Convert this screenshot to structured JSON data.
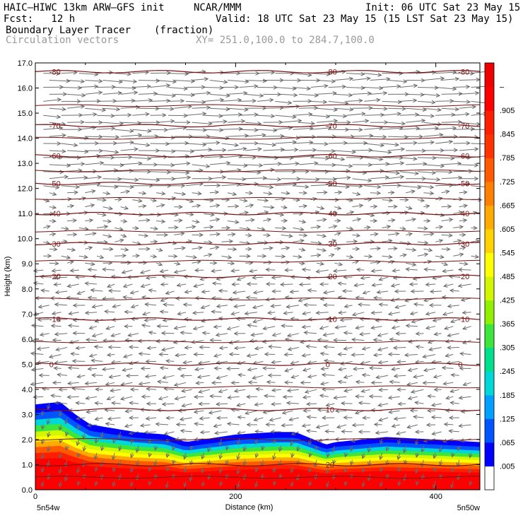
{
  "header": {
    "model": "HAIC–HIWC 13km ARW–GFS init",
    "org": "NCAR/MMM",
    "init": "Init: 06 UTC Sat 23 May 15",
    "fcst": "Fcst:   12 h",
    "valid": "Valid: 18 UTC Sat 23 May 15 (15 LST Sat 23 May 15)",
    "field": "Boundary Layer Tracer",
    "units": "(fraction)",
    "overlay": "Circulation vectors",
    "xy": "XY= 251.0,100.0 to 284.7,100.0"
  },
  "chart_data": {
    "type": "heatmap",
    "title": "Boundary Layer Tracer",
    "units": "(fraction)",
    "xlabel": "Distance (km)",
    "ylabel": "Height (km)",
    "xlim": [
      0,
      444
    ],
    "ylim": [
      0,
      17
    ],
    "x_ticks": [
      0,
      200,
      400
    ],
    "y_ticks": [
      0.0,
      1.0,
      2.0,
      3.0,
      4.0,
      5.0,
      6.0,
      7.0,
      8.0,
      9.0,
      10.0,
      11.0,
      12.0,
      13.0,
      14.0,
      15.0,
      16.0,
      17.0
    ],
    "x_left_label": "5n54w",
    "x_right_label": "5n50w",
    "colorbar": {
      "labels": [
        ".005",
        ".065",
        ".125",
        ".185",
        ".245",
        ".305",
        ".365",
        ".425",
        ".485",
        ".545",
        ".605",
        ".665",
        ".725",
        ".785",
        ".845",
        ".905",
        "–"
      ],
      "colors": [
        "#ffffff",
        "#0000ff",
        "#0055ff",
        "#00a0ff",
        "#00d8d8",
        "#00e08c",
        "#3ce63c",
        "#90f000",
        "#d2f500",
        "#ffff00",
        "#ffd200",
        "#ffaa00",
        "#ff8000",
        "#ff5a00",
        "#ff3200",
        "#ff1e00",
        "#ff0000",
        "#ee0000"
      ]
    },
    "tracer_top": {
      "x": [
        0,
        25,
        40,
        55,
        70,
        100,
        130,
        150,
        200,
        240,
        260,
        290,
        300,
        350,
        400,
        444
      ],
      "height": [
        3.4,
        3.5,
        3.0,
        2.6,
        2.5,
        2.3,
        2.2,
        1.9,
        2.2,
        2.3,
        2.3,
        1.8,
        1.9,
        2.1,
        2.0,
        1.9
      ]
    },
    "temperature_contours_C": [
      {
        "value": -80,
        "label": "-80",
        "height": 16.65
      },
      {
        "value": -70,
        "label": "-70",
        "height": 14.5
      },
      {
        "value": -60,
        "label": "-60",
        "height": 13.3
      },
      {
        "value": -50,
        "label": "-50",
        "height": 12.2
      },
      {
        "value": -40,
        "label": "-40",
        "height": 11.0
      },
      {
        "value": -30,
        "label": "-30",
        "height": 9.8
      },
      {
        "value": -20,
        "label": "-20",
        "height": 8.5
      },
      {
        "value": -10,
        "label": "-10",
        "height": 6.8
      },
      {
        "value": 0,
        "label": "0",
        "height": 5.0
      },
      {
        "value": 10,
        "label": "10",
        "height": 3.2
      },
      {
        "value": 20,
        "label": "20",
        "height": 1.0
      }
    ],
    "wind_regimes": [
      {
        "layer_km": [
          12,
          17
        ],
        "direction": "eastward",
        "strength": "strong"
      },
      {
        "layer_km": [
          9,
          12
        ],
        "direction": "eastward",
        "strength": "weak"
      },
      {
        "layer_km": [
          0,
          9
        ],
        "direction": "westward",
        "strength": "moderate"
      }
    ]
  }
}
